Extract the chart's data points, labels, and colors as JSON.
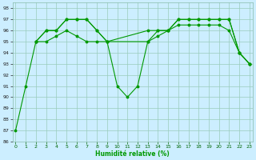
{
  "xlabel": "Humidité relative (%)",
  "bg_color": "#cceeff",
  "grid_color": "#99ccbb",
  "line_color": "#009900",
  "line1_x": [
    0,
    1,
    2,
    3,
    4,
    5,
    6,
    7,
    8,
    9,
    10,
    11,
    12,
    13,
    14,
    15,
    16,
    17,
    18,
    19,
    20,
    21,
    22,
    23
  ],
  "line1_y": [
    87,
    91,
    95,
    96,
    96,
    97,
    97,
    97,
    96,
    95,
    91,
    90,
    91,
    95,
    96,
    96,
    97,
    97,
    97,
    97,
    97,
    97,
    94,
    93
  ],
  "line2_x": [
    2,
    3,
    4,
    5,
    6,
    7,
    8,
    9,
    13,
    14,
    15,
    16,
    17,
    18,
    19,
    20,
    21,
    22,
    23
  ],
  "line2_y": [
    95,
    96,
    96,
    97,
    97,
    97,
    96,
    95,
    96,
    96,
    96,
    97,
    97,
    97,
    97,
    97,
    97,
    94,
    93
  ],
  "line3_x": [
    2,
    3,
    4,
    5,
    6,
    7,
    8,
    9,
    13,
    14,
    15,
    16,
    17,
    18,
    19,
    20,
    21,
    22,
    23
  ],
  "line3_y": [
    95,
    95,
    95.5,
    96,
    95.5,
    95,
    95,
    95,
    95,
    95.5,
    96,
    96.5,
    96.5,
    96.5,
    96.5,
    96.5,
    96,
    94,
    93
  ],
  "xlim": [
    -0.3,
    23.3
  ],
  "ylim": [
    86,
    98.5
  ],
  "yticks": [
    86,
    87,
    88,
    89,
    90,
    91,
    92,
    93,
    94,
    95,
    96,
    97,
    98
  ],
  "xticks": [
    0,
    1,
    2,
    3,
    4,
    5,
    6,
    7,
    8,
    9,
    10,
    11,
    12,
    13,
    14,
    15,
    16,
    17,
    18,
    19,
    20,
    21,
    22,
    23
  ]
}
